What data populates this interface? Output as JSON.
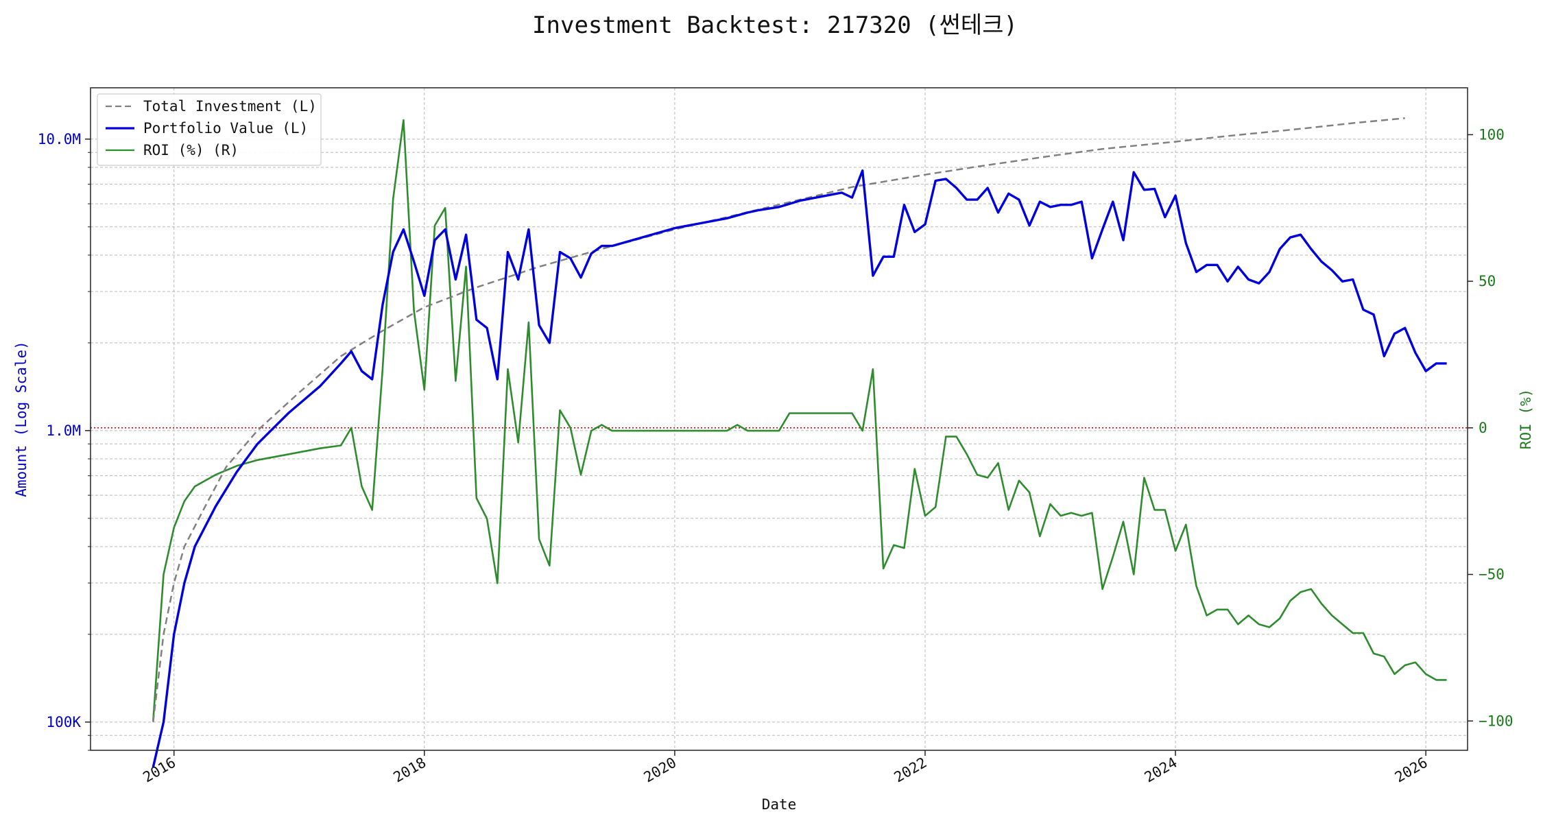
{
  "chart_data": {
    "type": "line",
    "title": "Investment Backtest: 217320 (썬테크)",
    "xlabel": "Date",
    "ylabel_left": "Amount (Log Scale)",
    "ylabel_right": "ROI (%)",
    "left_axis_scale": "log",
    "left_axis_range": [
      80000,
      15000000
    ],
    "right_axis_range": [
      -110,
      116
    ],
    "x_range": [
      "2015-05",
      "2026-05"
    ],
    "x_ticks": [
      {
        "date": "2016-01",
        "label": "2016"
      },
      {
        "date": "2018-01",
        "label": "2018"
      },
      {
        "date": "2020-01",
        "label": "2020"
      },
      {
        "date": "2022-01",
        "label": "2022"
      },
      {
        "date": "2024-01",
        "label": "2024"
      },
      {
        "date": "2026-01",
        "label": "2026"
      }
    ],
    "left_ticks": [
      {
        "value": 100000,
        "label": "100K"
      },
      {
        "value": 1000000,
        "label": "1.0M"
      },
      {
        "value": 10000000,
        "label": "10.0M"
      }
    ],
    "right_ticks": [
      {
        "value": -100,
        "label": "−100"
      },
      {
        "value": -50,
        "label": "−50"
      },
      {
        "value": 0,
        "label": "0"
      },
      {
        "value": 50,
        "label": "50"
      },
      {
        "value": 100,
        "label": "100"
      }
    ],
    "reference_line": {
      "axis": "right",
      "value": 0,
      "color": "#dd0000",
      "style": "dotted"
    },
    "grid": true,
    "legend_position": "top-left",
    "colors": {
      "investment": "#808080",
      "portfolio": "#0000dd",
      "roi": "#2e8b2e",
      "left_axis": "#0000cc",
      "right_axis": "#1a7a1a"
    },
    "series": [
      {
        "name": "Total Investment (L)",
        "axis": "left",
        "style": "dashed",
        "color": "#808080",
        "points": [
          [
            "2015-11",
            100000
          ],
          [
            "2015-12",
            200000
          ],
          [
            "2016-01",
            300000
          ],
          [
            "2016-02",
            400000
          ],
          [
            "2016-04",
            550000
          ],
          [
            "2016-06",
            750000
          ],
          [
            "2016-09",
            1000000
          ],
          [
            "2017-01",
            1350000
          ],
          [
            "2017-05",
            1800000
          ],
          [
            "2017-09",
            2200000
          ],
          [
            "2018-01",
            2650000
          ],
          [
            "2018-06",
            3100000
          ],
          [
            "2018-12",
            3650000
          ],
          [
            "2019-06",
            4200000
          ],
          [
            "2020-01",
            4900000
          ],
          [
            "2020-06",
            5400000
          ],
          [
            "2021-01",
            6200000
          ],
          [
            "2021-06",
            6850000
          ],
          [
            "2022-01",
            7550000
          ],
          [
            "2022-06",
            8050000
          ],
          [
            "2023-01",
            8750000
          ],
          [
            "2023-06",
            9250000
          ],
          [
            "2024-01",
            9800000
          ],
          [
            "2024-06",
            10250000
          ],
          [
            "2025-01",
            10850000
          ],
          [
            "2025-06",
            11350000
          ],
          [
            "2025-11",
            11800000
          ]
        ]
      },
      {
        "name": "Portfolio Value (L)",
        "axis": "left",
        "style": "solid",
        "color": "#0000dd",
        "points": [
          [
            "2015-11",
            70000
          ],
          [
            "2015-12",
            100000
          ],
          [
            "2016-01",
            200000
          ],
          [
            "2016-02",
            300000
          ],
          [
            "2016-03",
            400000
          ],
          [
            "2016-05",
            550000
          ],
          [
            "2016-07",
            720000
          ],
          [
            "2016-09",
            900000
          ],
          [
            "2016-12",
            1150000
          ],
          [
            "2017-03",
            1420000
          ],
          [
            "2017-05",
            1700000
          ],
          [
            "2017-06",
            1870000
          ],
          [
            "2017-07",
            1600000
          ],
          [
            "2017-08",
            1500000
          ],
          [
            "2017-09",
            2700000
          ],
          [
            "2017-10",
            4100000
          ],
          [
            "2017-11",
            4900000
          ],
          [
            "2017-12",
            3800000
          ],
          [
            "2018-01",
            2900000
          ],
          [
            "2018-02",
            4500000
          ],
          [
            "2018-03",
            4900000
          ],
          [
            "2018-04",
            3300000
          ],
          [
            "2018-05",
            4700000
          ],
          [
            "2018-06",
            2400000
          ],
          [
            "2018-07",
            2250000
          ],
          [
            "2018-08",
            1500000
          ],
          [
            "2018-09",
            4100000
          ],
          [
            "2018-10",
            3300000
          ],
          [
            "2018-11",
            4900000
          ],
          [
            "2018-12",
            2300000
          ],
          [
            "2019-01",
            2000000
          ],
          [
            "2019-02",
            4100000
          ],
          [
            "2019-03",
            3900000
          ],
          [
            "2019-04",
            3350000
          ],
          [
            "2019-05",
            4050000
          ],
          [
            "2019-06",
            4300000
          ],
          [
            "2019-07",
            4300000
          ],
          [
            "2020-01",
            4950000
          ],
          [
            "2020-06",
            5350000
          ],
          [
            "2020-08",
            5600000
          ],
          [
            "2020-09",
            5700000
          ],
          [
            "2020-11",
            5850000
          ],
          [
            "2021-01",
            6150000
          ],
          [
            "2021-05",
            6550000
          ],
          [
            "2021-06",
            6300000
          ],
          [
            "2021-07",
            7800000
          ],
          [
            "2021-08",
            3400000
          ],
          [
            "2021-09",
            3950000
          ],
          [
            "2021-10",
            3950000
          ],
          [
            "2021-11",
            5950000
          ],
          [
            "2021-12",
            4800000
          ],
          [
            "2022-01",
            5100000
          ],
          [
            "2022-02",
            7200000
          ],
          [
            "2022-03",
            7300000
          ],
          [
            "2022-04",
            6800000
          ],
          [
            "2022-05",
            6200000
          ],
          [
            "2022-06",
            6200000
          ],
          [
            "2022-07",
            6800000
          ],
          [
            "2022-08",
            5600000
          ],
          [
            "2022-09",
            6500000
          ],
          [
            "2022-10",
            6200000
          ],
          [
            "2022-11",
            5050000
          ],
          [
            "2022-12",
            6100000
          ],
          [
            "2023-01",
            5850000
          ],
          [
            "2023-02",
            5950000
          ],
          [
            "2023-03",
            5950000
          ],
          [
            "2023-04",
            6100000
          ],
          [
            "2023-05",
            3900000
          ],
          [
            "2023-06",
            4900000
          ],
          [
            "2023-07",
            6100000
          ],
          [
            "2023-08",
            4500000
          ],
          [
            "2023-09",
            7700000
          ],
          [
            "2023-10",
            6700000
          ],
          [
            "2023-11",
            6750000
          ],
          [
            "2023-12",
            5400000
          ],
          [
            "2024-01",
            6400000
          ],
          [
            "2024-02",
            4400000
          ],
          [
            "2024-03",
            3500000
          ],
          [
            "2024-04",
            3700000
          ],
          [
            "2024-05",
            3700000
          ],
          [
            "2024-06",
            3250000
          ],
          [
            "2024-07",
            3650000
          ],
          [
            "2024-08",
            3300000
          ],
          [
            "2024-09",
            3200000
          ],
          [
            "2024-10",
            3500000
          ],
          [
            "2024-11",
            4200000
          ],
          [
            "2024-12",
            4600000
          ],
          [
            "2025-01",
            4700000
          ],
          [
            "2025-02",
            4200000
          ],
          [
            "2025-03",
            3800000
          ],
          [
            "2025-04",
            3550000
          ],
          [
            "2025-05",
            3250000
          ],
          [
            "2025-06",
            3300000
          ],
          [
            "2025-07",
            2600000
          ],
          [
            "2025-08",
            2500000
          ],
          [
            "2025-09",
            1800000
          ],
          [
            "2025-10",
            2150000
          ],
          [
            "2025-11",
            2250000
          ],
          [
            "2025-12",
            1850000
          ],
          [
            "2026-01",
            1600000
          ],
          [
            "2026-02",
            1700000
          ],
          [
            "2026-03",
            1700000
          ]
        ]
      },
      {
        "name": "ROI (%) (R)",
        "axis": "right",
        "style": "solid",
        "color": "#2e8b2e",
        "points": [
          [
            "2015-11",
            -100
          ],
          [
            "2015-12",
            -50
          ],
          [
            "2016-01",
            -34
          ],
          [
            "2016-02",
            -25
          ],
          [
            "2016-03",
            -20
          ],
          [
            "2016-05",
            -16
          ],
          [
            "2016-07",
            -13
          ],
          [
            "2016-09",
            -11
          ],
          [
            "2016-12",
            -9
          ],
          [
            "2017-03",
            -7
          ],
          [
            "2017-05",
            -6
          ],
          [
            "2017-06",
            0
          ],
          [
            "2017-07",
            -20
          ],
          [
            "2017-08",
            -28
          ],
          [
            "2017-09",
            20
          ],
          [
            "2017-10",
            78
          ],
          [
            "2017-11",
            105
          ],
          [
            "2017-12",
            40
          ],
          [
            "2018-01",
            13
          ],
          [
            "2018-02",
            69
          ],
          [
            "2018-03",
            75
          ],
          [
            "2018-04",
            16
          ],
          [
            "2018-05",
            55
          ],
          [
            "2018-06",
            -24
          ],
          [
            "2018-07",
            -31
          ],
          [
            "2018-08",
            -53
          ],
          [
            "2018-09",
            20
          ],
          [
            "2018-10",
            -5
          ],
          [
            "2018-11",
            36
          ],
          [
            "2018-12",
            -38
          ],
          [
            "2019-01",
            -47
          ],
          [
            "2019-02",
            6
          ],
          [
            "2019-03",
            0
          ],
          [
            "2019-04",
            -16
          ],
          [
            "2019-05",
            -1
          ],
          [
            "2019-06",
            1
          ],
          [
            "2019-07",
            -1
          ],
          [
            "2020-01",
            -1
          ],
          [
            "2020-06",
            -1
          ],
          [
            "2020-07",
            1
          ],
          [
            "2020-08",
            -1
          ],
          [
            "2020-11",
            -1
          ],
          [
            "2020-12",
            5
          ],
          [
            "2021-06",
            5
          ],
          [
            "2021-07",
            -1
          ],
          [
            "2021-08",
            20
          ],
          [
            "2021-09",
            -48
          ],
          [
            "2021-10",
            -40
          ],
          [
            "2021-11",
            -41
          ],
          [
            "2021-12",
            -14
          ],
          [
            "2022-01",
            -30
          ],
          [
            "2022-02",
            -27
          ],
          [
            "2022-03",
            -3
          ],
          [
            "2022-04",
            -3
          ],
          [
            "2022-05",
            -9
          ],
          [
            "2022-06",
            -16
          ],
          [
            "2022-07",
            -17
          ],
          [
            "2022-08",
            -12
          ],
          [
            "2022-09",
            -28
          ],
          [
            "2022-10",
            -18
          ],
          [
            "2022-11",
            -22
          ],
          [
            "2022-12",
            -37
          ],
          [
            "2023-01",
            -26
          ],
          [
            "2023-02",
            -30
          ],
          [
            "2023-03",
            -29
          ],
          [
            "2023-04",
            -30
          ],
          [
            "2023-05",
            -29
          ],
          [
            "2023-06",
            -55
          ],
          [
            "2023-07",
            -44
          ],
          [
            "2023-08",
            -32
          ],
          [
            "2023-09",
            -50
          ],
          [
            "2023-10",
            -17
          ],
          [
            "2023-11",
            -28
          ],
          [
            "2023-12",
            -28
          ],
          [
            "2024-01",
            -42
          ],
          [
            "2024-02",
            -33
          ],
          [
            "2024-03",
            -54
          ],
          [
            "2024-04",
            -64
          ],
          [
            "2024-05",
            -62
          ],
          [
            "2024-06",
            -62
          ],
          [
            "2024-07",
            -67
          ],
          [
            "2024-08",
            -64
          ],
          [
            "2024-09",
            -67
          ],
          [
            "2024-10",
            -68
          ],
          [
            "2024-11",
            -65
          ],
          [
            "2024-12",
            -59
          ],
          [
            "2025-01",
            -56
          ],
          [
            "2025-02",
            -55
          ],
          [
            "2025-03",
            -60
          ],
          [
            "2025-04",
            -64
          ],
          [
            "2025-05",
            -67
          ],
          [
            "2025-06",
            -70
          ],
          [
            "2025-07",
            -70
          ],
          [
            "2025-08",
            -77
          ],
          [
            "2025-09",
            -78
          ],
          [
            "2025-10",
            -84
          ],
          [
            "2025-11",
            -81
          ],
          [
            "2025-12",
            -80
          ],
          [
            "2026-01",
            -84
          ],
          [
            "2026-02",
            -86
          ],
          [
            "2026-03",
            -86
          ]
        ]
      }
    ]
  }
}
